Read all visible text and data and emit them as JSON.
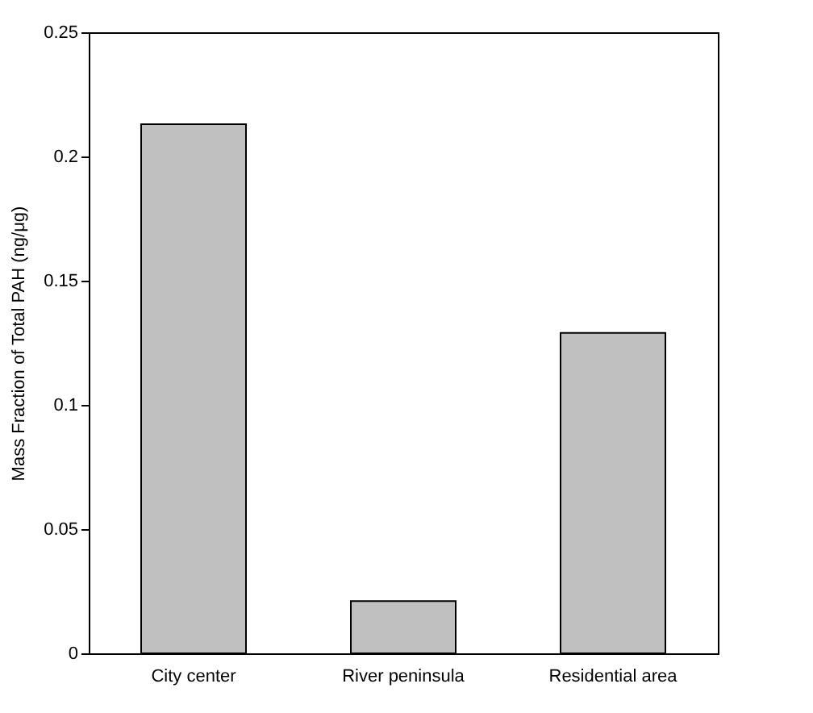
{
  "chart_data": {
    "type": "bar",
    "ylabel": "Mass Fraction of Total PAH (ng/μg)",
    "categories": [
      "City center",
      "River peninsula",
      "Residential area"
    ],
    "values": [
      0.213,
      0.021,
      0.129
    ],
    "color": "#c0c0c0",
    "ylim": [
      0,
      0.25
    ],
    "yticks": [
      0,
      0.05,
      0.1,
      0.15,
      0.2,
      0.25
    ],
    "grid": false
  }
}
